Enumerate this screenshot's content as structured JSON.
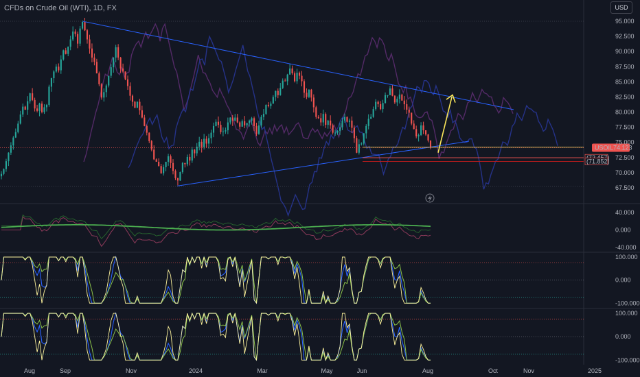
{
  "title": "CFDs on Crude Oil (WTI), 1D, FX",
  "currency_button": "USD",
  "chart_data": {
    "type": "line",
    "price_axis": [
      "95.000",
      "92.500",
      "90.000",
      "87.500",
      "85.000",
      "82.500",
      "80.000",
      "77.500",
      "75.000",
      "72.500",
      "70.000",
      "67.500"
    ],
    "price_ylim": [
      66.2,
      96.6
    ],
    "x_labels": [
      "Aug",
      "Sep",
      "Nov",
      "2024",
      "Mar",
      "May",
      "Jun",
      "Aug",
      "Oct",
      "Nov",
      "2025"
    ],
    "symbol_label": "USOIL",
    "last_price": "74.123",
    "level_labels": [
      "72.457",
      "71.852"
    ],
    "price": {
      "start_date": "2023-07-03",
      "closes": [
        69.8,
        70.6,
        71.9,
        73.3,
        74.5,
        75.8,
        76.7,
        78.1,
        79.6,
        80.9,
        80.4,
        81.8,
        83.1,
        82.0,
        80.6,
        80.2,
        81.4,
        80.0,
        80.8,
        81.2,
        84.2,
        85.6,
        86.7,
        87.5,
        86.9,
        88.7,
        90.2,
        89.6,
        90.8,
        92.0,
        93.3,
        92.9,
        91.3,
        93.8,
        94.9,
        93.5,
        92.0,
        90.5,
        89.0,
        88.3,
        86.4,
        84.6,
        82.4,
        83.3,
        84.4,
        86.0,
        87.4,
        89.0,
        90.7,
        89.0,
        87.2,
        86.7,
        85.4,
        84.3,
        82.7,
        81.7,
        80.7,
        81.7,
        80.3,
        79.1,
        77.7,
        76.6,
        75.2,
        73.8,
        72.2,
        71.8,
        71.1,
        69.9,
        70.9,
        71.8,
        72.7,
        71.6,
        70.3,
        69.1,
        68.7,
        70.1,
        71.6,
        71.4,
        72.6,
        72.0,
        73.8,
        73.2,
        74.3,
        75.1,
        74.2,
        75.6,
        74.8,
        75.7,
        76.6,
        77.7,
        78.4,
        77.9,
        76.7,
        76.8,
        77.0,
        78.3,
        79.1,
        78.6,
        79.1,
        78.3,
        77.6,
        78.5,
        77.8,
        78.2,
        78.6,
        79.0,
        77.7,
        76.4,
        77.8,
        79.2,
        79.7,
        81.2,
        81.0,
        81.4,
        82.5,
        83.5,
        82.8,
        84.0,
        85.2,
        85.1,
        86.2,
        87.2,
        86.4,
        85.1,
        86.5,
        86.0,
        85.1,
        83.2,
        82.5,
        83.7,
        82.4,
        80.8,
        79.2,
        79.0,
        78.3,
        79.7,
        77.9,
        78.6,
        77.8,
        76.6,
        76.6,
        76.9,
        77.5,
        78.6,
        79.2,
        78.4,
        78.6,
        77.4,
        75.7,
        73.3,
        74.7,
        74.8,
        76.5,
        77.7,
        78.9,
        79.2,
        80.5,
        81.7,
        81.3,
        80.5,
        81.5,
        82.8,
        82.8,
        83.9,
        82.7,
        81.6,
        82.2,
        82.9,
        81.9,
        81.3,
        80.4,
        79.9,
        78.1,
        77.2,
        76.0,
        76.2,
        77.8,
        77.0,
        76.3,
        75.3,
        74.1
      ],
      "start_index": 0
    },
    "indicator1": {
      "name": "",
      "axis": [
        "40.000",
        "0.000",
        "-40.000"
      ],
      "ylim": [
        -48,
        56
      ]
    },
    "indicator2": {
      "name": "",
      "axis": [
        "100.000",
        "0.000",
        "-100.000"
      ],
      "ylim": [
        -108,
        112
      ]
    },
    "indicator3": {
      "name": "",
      "axis": [
        "100.000",
        "0.000",
        "-100.000"
      ],
      "ylim": [
        -108,
        112
      ]
    }
  }
}
